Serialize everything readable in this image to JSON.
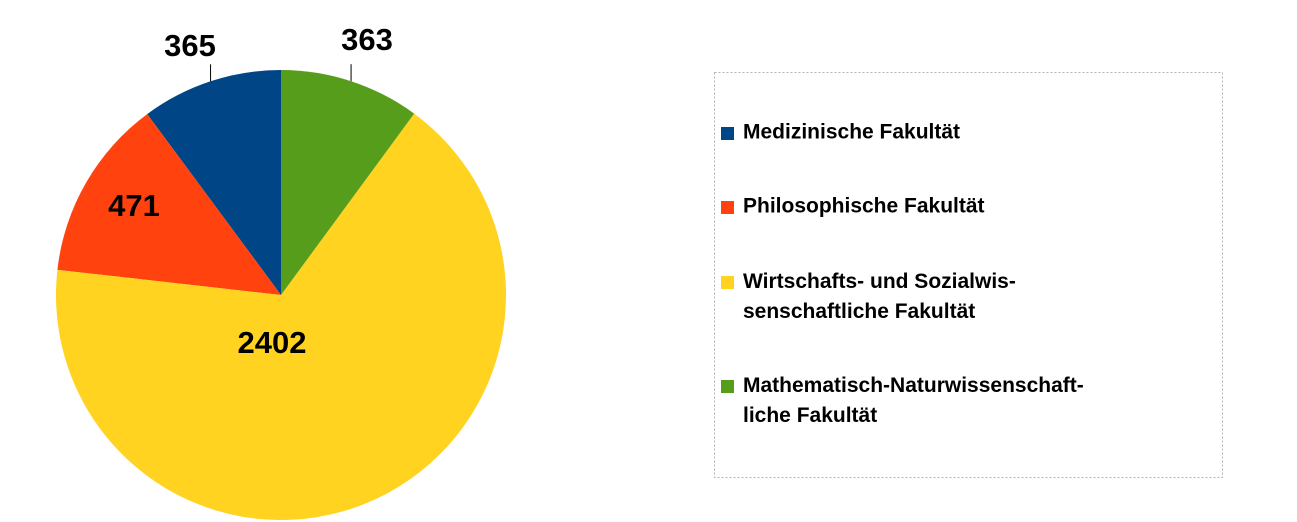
{
  "chart_data": {
    "type": "pie",
    "series": [
      {
        "name": "Medizinische Fakultät",
        "color": "#004586",
        "values": [
          365
        ]
      },
      {
        "name": "Philosophische Fakultät",
        "color": "#ff420e",
        "values": [
          471
        ]
      },
      {
        "name": "Wirtschafts- und Sozialwis-\nsenschaftliche Fakultät",
        "color": "#ffd320",
        "values": [
          2402
        ]
      },
      {
        "name": "Mathematisch-Naturwissenschaft-\nliche Fakultät",
        "color": "#579d1c",
        "values": [
          363
        ]
      }
    ]
  }
}
